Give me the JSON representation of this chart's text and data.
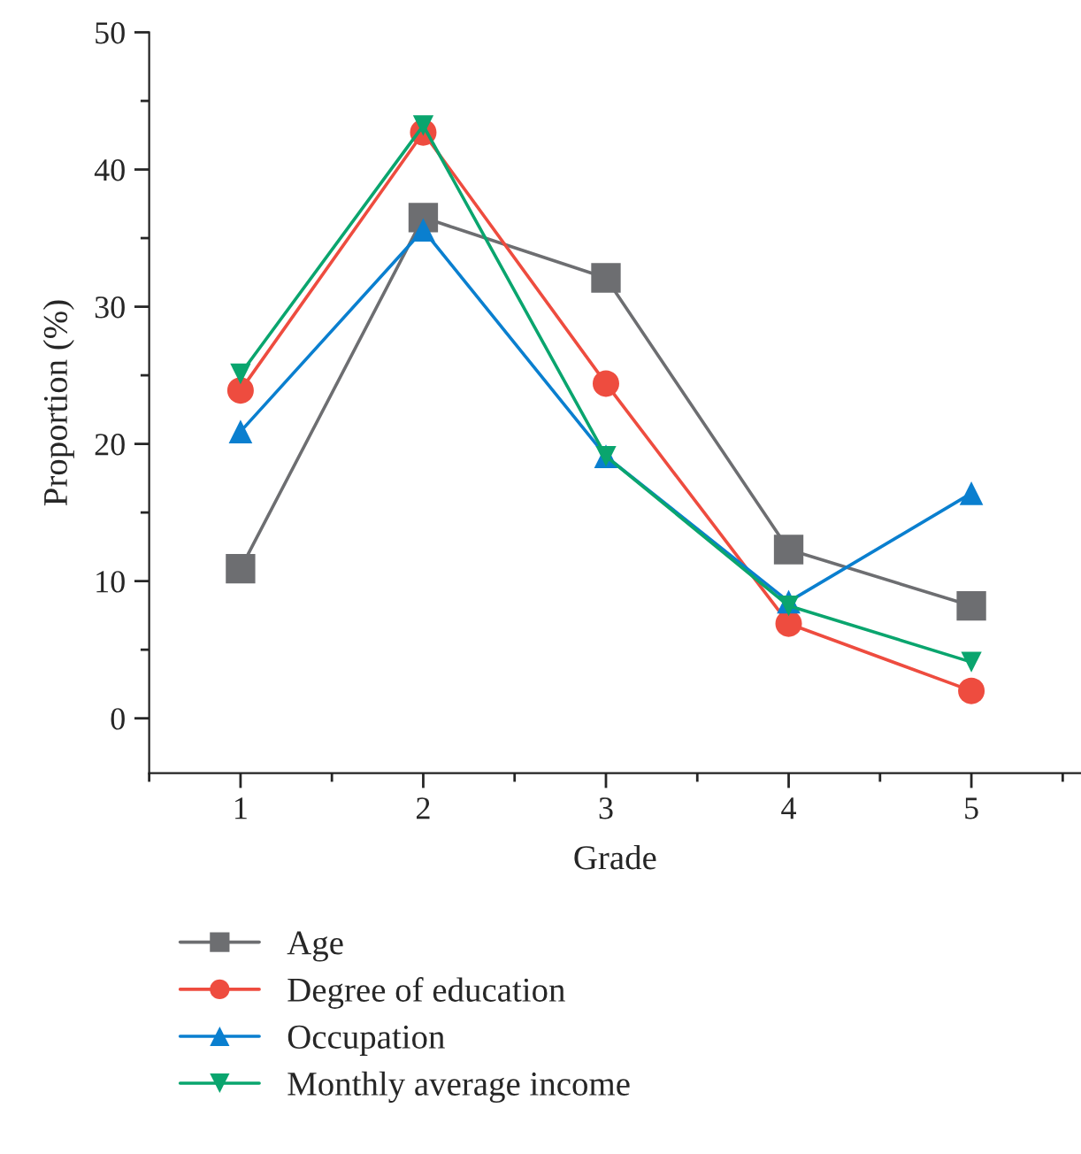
{
  "chart_data": {
    "type": "line",
    "xlabel": "Grade",
    "ylabel": "Proportion (%)",
    "x": [
      1,
      2,
      3,
      4,
      5
    ],
    "series": [
      {
        "name": "Age",
        "color": "#6d6e71",
        "marker": "square",
        "values": [
          10.9,
          36.5,
          32.1,
          12.3,
          8.2
        ]
      },
      {
        "name": "Degree of education",
        "color": "#ee4c3f",
        "marker": "circle",
        "values": [
          23.9,
          42.7,
          24.4,
          6.9,
          2.0
        ]
      },
      {
        "name": "Occupation",
        "color": "#0a7fcf",
        "marker": "triangle",
        "values": [
          20.9,
          35.6,
          19.1,
          8.5,
          16.4
        ]
      },
      {
        "name": "Monthly average income",
        "color": "#0aa56e",
        "marker": "triangle-down",
        "values": [
          25.1,
          43.2,
          19.1,
          8.2,
          4.1
        ]
      }
    ],
    "xlim": [
      0.5,
      5.6
    ],
    "xticks": [
      1,
      2,
      3,
      4,
      5
    ],
    "ylim": [
      -4,
      50
    ],
    "yticks": [
      0,
      10,
      20,
      30,
      40,
      50
    ],
    "grid": false,
    "legend": "bottom",
    "line_style": "solid"
  }
}
